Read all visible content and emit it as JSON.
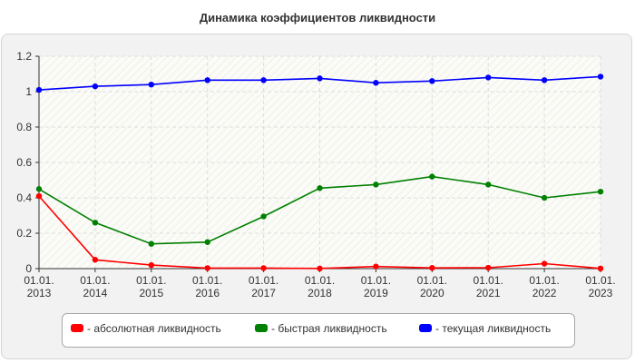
{
  "chart_data": {
    "type": "line",
    "title": "Динамика коэффициентов ликвидности",
    "x": [
      "01.01.\n2013",
      "01.01.\n2014",
      "01.01.\n2015",
      "01.01.\n2016",
      "01.01.\n2017",
      "01.01.\n2018",
      "01.01.\n2019",
      "01.01.\n2020",
      "01.01.\n2021",
      "01.01.\n2022",
      "01.01.\n2023"
    ],
    "ylim": [
      0,
      1.2
    ],
    "yticks": [
      "0",
      "0.2",
      "0.4",
      "0.6",
      "0.8",
      "1",
      "1.2"
    ],
    "grid": true,
    "legend_position": "bottom",
    "series": [
      {
        "name": "- абсолютная ликвидность",
        "color": "#ff0000",
        "values": [
          0.41,
          0.05,
          0.02,
          0.003,
          0.003,
          0.001,
          0.012,
          0.004,
          0.005,
          0.028,
          0.001
        ]
      },
      {
        "name": "- быстрая ликвидность",
        "color": "#008000",
        "values": [
          0.45,
          0.26,
          0.14,
          0.15,
          0.295,
          0.455,
          0.475,
          0.52,
          0.475,
          0.4,
          0.435
        ]
      },
      {
        "name": "- текущая ликвидность",
        "color": "#0000ff",
        "values": [
          1.01,
          1.03,
          1.04,
          1.065,
          1.065,
          1.075,
          1.05,
          1.06,
          1.08,
          1.065,
          1.085
        ]
      }
    ]
  }
}
